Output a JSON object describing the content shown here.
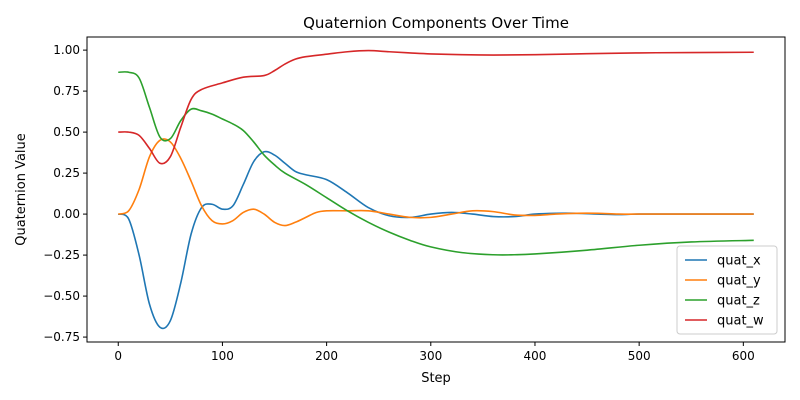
{
  "chart_data": {
    "type": "line",
    "title": "Quaternion Components Over Time",
    "xlabel": "Step",
    "ylabel": "Quaternion Value",
    "xlim": [
      -30,
      640
    ],
    "ylim": [
      -0.78,
      1.08
    ],
    "xticks": [
      0,
      100,
      200,
      300,
      400,
      500,
      600
    ],
    "yticks": [
      -0.75,
      -0.5,
      -0.25,
      0.0,
      0.25,
      0.5,
      0.75,
      1.0
    ],
    "ytick_labels": [
      "−0.75",
      "−0.50",
      "−0.25",
      "0.00",
      "0.25",
      "0.50",
      "0.75",
      "1.00"
    ],
    "grid": false,
    "legend_position": "bottom-right",
    "series": [
      {
        "name": "quat_x",
        "color": "#1f77b4",
        "points": [
          [
            0,
            0
          ],
          [
            10,
            -0.03
          ],
          [
            20,
            -0.25
          ],
          [
            30,
            -0.55
          ],
          [
            40,
            -0.69
          ],
          [
            50,
            -0.65
          ],
          [
            60,
            -0.42
          ],
          [
            70,
            -0.12
          ],
          [
            80,
            0.04
          ],
          [
            90,
            0.06
          ],
          [
            100,
            0.03
          ],
          [
            110,
            0.05
          ],
          [
            120,
            0.18
          ],
          [
            130,
            0.32
          ],
          [
            140,
            0.38
          ],
          [
            150,
            0.36
          ],
          [
            160,
            0.31
          ],
          [
            170,
            0.26
          ],
          [
            180,
            0.24
          ],
          [
            200,
            0.21
          ],
          [
            220,
            0.13
          ],
          [
            240,
            0.04
          ],
          [
            260,
            -0.01
          ],
          [
            280,
            -0.02
          ],
          [
            300,
            0.0
          ],
          [
            320,
            0.01
          ],
          [
            340,
            0.0
          ],
          [
            360,
            -0.015
          ],
          [
            380,
            -0.015
          ],
          [
            400,
            0.0
          ],
          [
            420,
            0.005
          ],
          [
            440,
            0.005
          ],
          [
            460,
            0.0
          ],
          [
            480,
            -0.003
          ],
          [
            500,
            0.0
          ],
          [
            550,
            0.0
          ],
          [
            610,
            0.0
          ]
        ]
      },
      {
        "name": "quat_y",
        "color": "#ff7f0e",
        "points": [
          [
            0,
            0
          ],
          [
            10,
            0.02
          ],
          [
            20,
            0.15
          ],
          [
            30,
            0.35
          ],
          [
            40,
            0.45
          ],
          [
            50,
            0.44
          ],
          [
            60,
            0.34
          ],
          [
            70,
            0.2
          ],
          [
            80,
            0.05
          ],
          [
            90,
            -0.04
          ],
          [
            100,
            -0.06
          ],
          [
            110,
            -0.04
          ],
          [
            120,
            0.01
          ],
          [
            130,
            0.03
          ],
          [
            140,
            0.0
          ],
          [
            150,
            -0.05
          ],
          [
            160,
            -0.07
          ],
          [
            170,
            -0.05
          ],
          [
            180,
            -0.02
          ],
          [
            190,
            0.01
          ],
          [
            200,
            0.02
          ],
          [
            220,
            0.02
          ],
          [
            240,
            0.02
          ],
          [
            260,
            0.0
          ],
          [
            280,
            -0.02
          ],
          [
            300,
            -0.02
          ],
          [
            320,
            0.0
          ],
          [
            340,
            0.02
          ],
          [
            360,
            0.015
          ],
          [
            380,
            -0.005
          ],
          [
            400,
            -0.008
          ],
          [
            420,
            0.0
          ],
          [
            440,
            0.005
          ],
          [
            460,
            0.005
          ],
          [
            480,
            0.0
          ],
          [
            500,
            0.0
          ],
          [
            550,
            0.0
          ],
          [
            610,
            0.0
          ]
        ]
      },
      {
        "name": "quat_z",
        "color": "#2ca02c",
        "points": [
          [
            0,
            0.865
          ],
          [
            10,
            0.865
          ],
          [
            20,
            0.83
          ],
          [
            30,
            0.65
          ],
          [
            40,
            0.47
          ],
          [
            50,
            0.46
          ],
          [
            60,
            0.57
          ],
          [
            70,
            0.64
          ],
          [
            80,
            0.63
          ],
          [
            90,
            0.61
          ],
          [
            100,
            0.58
          ],
          [
            110,
            0.55
          ],
          [
            120,
            0.51
          ],
          [
            130,
            0.44
          ],
          [
            140,
            0.36
          ],
          [
            150,
            0.3
          ],
          [
            160,
            0.25
          ],
          [
            180,
            0.18
          ],
          [
            200,
            0.1
          ],
          [
            220,
            0.02
          ],
          [
            240,
            -0.05
          ],
          [
            260,
            -0.11
          ],
          [
            280,
            -0.16
          ],
          [
            300,
            -0.2
          ],
          [
            330,
            -0.235
          ],
          [
            360,
            -0.248
          ],
          [
            380,
            -0.248
          ],
          [
            400,
            -0.243
          ],
          [
            450,
            -0.22
          ],
          [
            500,
            -0.19
          ],
          [
            550,
            -0.17
          ],
          [
            610,
            -0.16
          ]
        ]
      },
      {
        "name": "quat_w",
        "color": "#d62728",
        "points": [
          [
            0,
            0.5
          ],
          [
            10,
            0.5
          ],
          [
            20,
            0.48
          ],
          [
            30,
            0.4
          ],
          [
            40,
            0.31
          ],
          [
            50,
            0.35
          ],
          [
            60,
            0.53
          ],
          [
            70,
            0.7
          ],
          [
            80,
            0.76
          ],
          [
            100,
            0.8
          ],
          [
            120,
            0.835
          ],
          [
            140,
            0.845
          ],
          [
            150,
            0.875
          ],
          [
            160,
            0.915
          ],
          [
            170,
            0.945
          ],
          [
            180,
            0.96
          ],
          [
            200,
            0.975
          ],
          [
            220,
            0.99
          ],
          [
            240,
            0.997
          ],
          [
            260,
            0.99
          ],
          [
            280,
            0.983
          ],
          [
            300,
            0.977
          ],
          [
            330,
            0.972
          ],
          [
            360,
            0.97
          ],
          [
            400,
            0.972
          ],
          [
            450,
            0.978
          ],
          [
            500,
            0.983
          ],
          [
            550,
            0.985
          ],
          [
            610,
            0.987
          ]
        ]
      }
    ]
  }
}
